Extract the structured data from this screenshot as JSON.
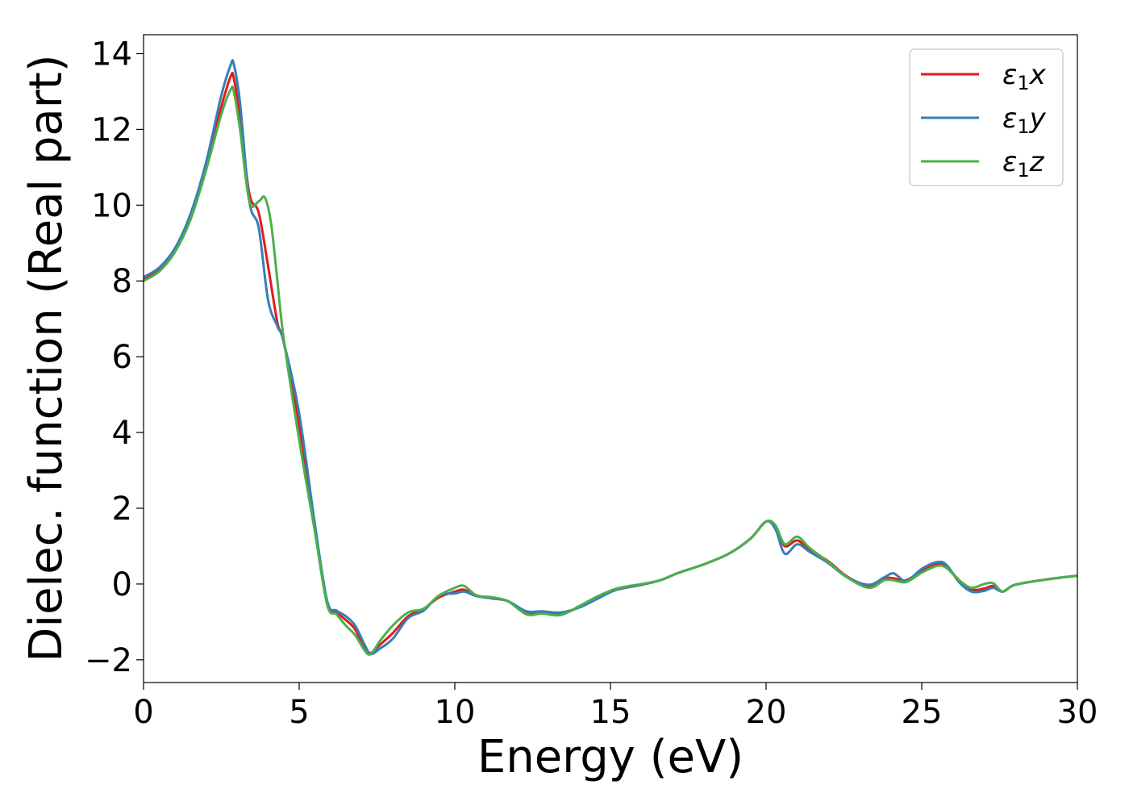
{
  "chart_data": {
    "type": "line",
    "title": "",
    "xlabel": "Energy (eV)",
    "ylabel": "Dielec. function (Real part)",
    "xlim": [
      0,
      30
    ],
    "ylim": [
      -2.6,
      14.5
    ],
    "xticks": [
      0,
      5,
      10,
      15,
      20,
      25,
      30
    ],
    "xtick_labels": [
      "0",
      "5",
      "10",
      "15",
      "20",
      "25",
      "30"
    ],
    "yticks": [
      -2,
      0,
      2,
      4,
      6,
      8,
      10,
      12,
      14
    ],
    "ytick_labels": [
      "−2",
      "0",
      "2",
      "4",
      "6",
      "8",
      "10",
      "12",
      "14"
    ],
    "grid": false,
    "legend_position": "top-right",
    "series": [
      {
        "name": "ε₁x",
        "legend_symbol": "ε",
        "legend_sub": "1",
        "legend_var": "x",
        "color": "#e41a1c",
        "x": [
          0,
          0.5,
          1.0,
          1.5,
          2.0,
          2.5,
          2.8,
          2.9,
          3.1,
          3.4,
          3.7,
          4.0,
          4.3,
          4.5,
          5.0,
          5.5,
          5.9,
          6.2,
          6.5,
          6.8,
          7.1,
          7.3,
          7.6,
          8.0,
          8.5,
          9.0,
          9.5,
          10.0,
          10.3,
          10.7,
          11.2,
          11.7,
          12.3,
          12.8,
          13.4,
          14.0,
          14.6,
          15.2,
          16.0,
          16.6,
          17.2,
          18.0,
          18.8,
          19.5,
          20.0,
          20.3,
          20.6,
          21.0,
          21.4,
          22.0,
          22.6,
          23.3,
          23.8,
          24.1,
          24.5,
          25.0,
          25.5,
          25.8,
          26.2,
          26.6,
          27.0,
          27.3,
          27.6,
          28.0,
          29.0,
          30.0
        ],
        "values": [
          8.05,
          8.3,
          8.8,
          9.7,
          11.0,
          12.6,
          13.4,
          13.35,
          12.3,
          10.3,
          9.8,
          8.4,
          6.9,
          6.4,
          4.2,
          1.5,
          -0.5,
          -0.75,
          -0.95,
          -1.2,
          -1.7,
          -1.82,
          -1.6,
          -1.3,
          -0.85,
          -0.65,
          -0.35,
          -0.2,
          -0.15,
          -0.3,
          -0.38,
          -0.45,
          -0.78,
          -0.75,
          -0.8,
          -0.6,
          -0.35,
          -0.15,
          -0.02,
          0.1,
          0.3,
          0.52,
          0.8,
          1.2,
          1.65,
          1.5,
          1.0,
          1.15,
          0.9,
          0.6,
          0.2,
          -0.05,
          0.15,
          0.15,
          0.1,
          0.35,
          0.52,
          0.45,
          0.1,
          -0.15,
          -0.12,
          -0.05,
          -0.2,
          -0.02,
          0.12,
          0.22
        ]
      },
      {
        "name": "ε₁y",
        "legend_symbol": "ε",
        "legend_sub": "1",
        "legend_var": "y",
        "color": "#377eb8",
        "x": [
          0,
          0.5,
          1.0,
          1.5,
          2.0,
          2.5,
          2.8,
          2.9,
          3.1,
          3.4,
          3.7,
          4.0,
          4.3,
          4.5,
          5.0,
          5.5,
          5.9,
          6.2,
          6.5,
          6.8,
          7.1,
          7.3,
          7.6,
          8.0,
          8.5,
          9.0,
          9.5,
          10.0,
          10.3,
          10.7,
          11.2,
          11.7,
          12.3,
          12.8,
          13.4,
          14.0,
          14.6,
          15.2,
          16.0,
          16.6,
          17.2,
          18.0,
          18.8,
          19.5,
          20.0,
          20.3,
          20.6,
          21.0,
          21.4,
          22.0,
          22.6,
          23.3,
          23.8,
          24.1,
          24.5,
          25.0,
          25.5,
          25.8,
          26.2,
          26.6,
          27.0,
          27.3,
          27.6,
          28.0,
          29.0,
          30.0
        ],
        "values": [
          8.1,
          8.35,
          8.85,
          9.75,
          11.1,
          12.9,
          13.7,
          13.72,
          12.7,
          10.1,
          9.4,
          7.5,
          6.8,
          6.4,
          4.5,
          1.6,
          -0.45,
          -0.7,
          -0.85,
          -1.1,
          -1.6,
          -1.85,
          -1.7,
          -1.45,
          -0.9,
          -0.7,
          -0.3,
          -0.25,
          -0.2,
          -0.32,
          -0.38,
          -0.45,
          -0.72,
          -0.72,
          -0.75,
          -0.62,
          -0.38,
          -0.15,
          -0.02,
          0.1,
          0.3,
          0.52,
          0.8,
          1.2,
          1.65,
          1.45,
          0.8,
          1.05,
          0.85,
          0.55,
          0.18,
          -0.02,
          0.18,
          0.28,
          0.08,
          0.4,
          0.58,
          0.5,
          0.05,
          -0.2,
          -0.18,
          -0.1,
          -0.2,
          -0.02,
          0.12,
          0.22
        ]
      },
      {
        "name": "ε₁z",
        "legend_symbol": "ε",
        "legend_sub": "1",
        "legend_var": "z",
        "color": "#4daf4a",
        "x": [
          0,
          0.5,
          1.0,
          1.5,
          2.0,
          2.5,
          2.8,
          2.9,
          3.1,
          3.4,
          3.7,
          3.9,
          4.1,
          4.3,
          4.5,
          5.0,
          5.5,
          5.9,
          6.2,
          6.5,
          6.8,
          7.1,
          7.3,
          7.6,
          8.0,
          8.5,
          9.0,
          9.5,
          10.0,
          10.3,
          10.7,
          11.2,
          11.7,
          12.3,
          12.8,
          13.4,
          14.0,
          14.6,
          15.2,
          16.0,
          16.6,
          17.2,
          18.0,
          18.8,
          19.5,
          20.0,
          20.3,
          20.6,
          21.0,
          21.4,
          22.0,
          22.6,
          23.3,
          23.8,
          24.1,
          24.5,
          25.0,
          25.5,
          25.8,
          26.2,
          26.6,
          27.0,
          27.3,
          27.6,
          28.0,
          29.0,
          30.0
        ],
        "values": [
          8.0,
          8.25,
          8.75,
          9.6,
          10.9,
          12.4,
          13.05,
          13.0,
          12.0,
          10.1,
          10.1,
          10.2,
          9.5,
          8.0,
          6.5,
          3.8,
          1.4,
          -0.55,
          -0.8,
          -1.1,
          -1.35,
          -1.75,
          -1.85,
          -1.5,
          -1.1,
          -0.75,
          -0.65,
          -0.3,
          -0.1,
          -0.05,
          -0.3,
          -0.35,
          -0.45,
          -0.8,
          -0.78,
          -0.82,
          -0.58,
          -0.32,
          -0.12,
          0.0,
          0.1,
          0.3,
          0.52,
          0.8,
          1.2,
          1.65,
          1.55,
          1.05,
          1.25,
          0.95,
          0.58,
          0.18,
          -0.1,
          0.1,
          0.1,
          0.05,
          0.3,
          0.48,
          0.42,
          0.1,
          -0.1,
          0.0,
          0.02,
          -0.2,
          -0.02,
          0.12,
          0.22
        ]
      }
    ]
  }
}
